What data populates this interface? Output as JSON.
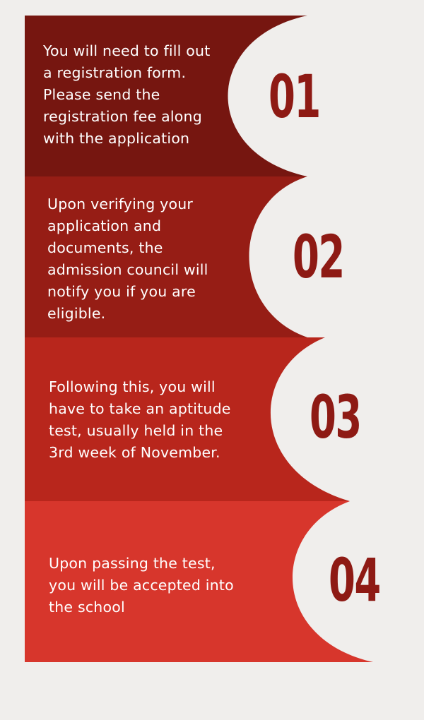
{
  "colors": {
    "background": "#f0eeec",
    "number": "#8e1a14",
    "band_1": "#761610",
    "band_2": "#961d15",
    "band_3": "#b8261c",
    "band_4": "#d7362c"
  },
  "steps": [
    {
      "number": "01",
      "text": "You will need to fill out\na registration form.\nPlease send the\nregistration fee along\nwith the application"
    },
    {
      "number": "02",
      "text": "Upon verifying your\napplication and\ndocuments, the\nadmission council will\nnotify you if you are\neligible."
    },
    {
      "number": "03",
      "text": "Following this, you will\nhave to take an aptitude\ntest, usually held in the\n3rd week of November."
    },
    {
      "number": "04",
      "text": "Upon passing the test,\nyou will be accepted into\nthe school"
    }
  ]
}
